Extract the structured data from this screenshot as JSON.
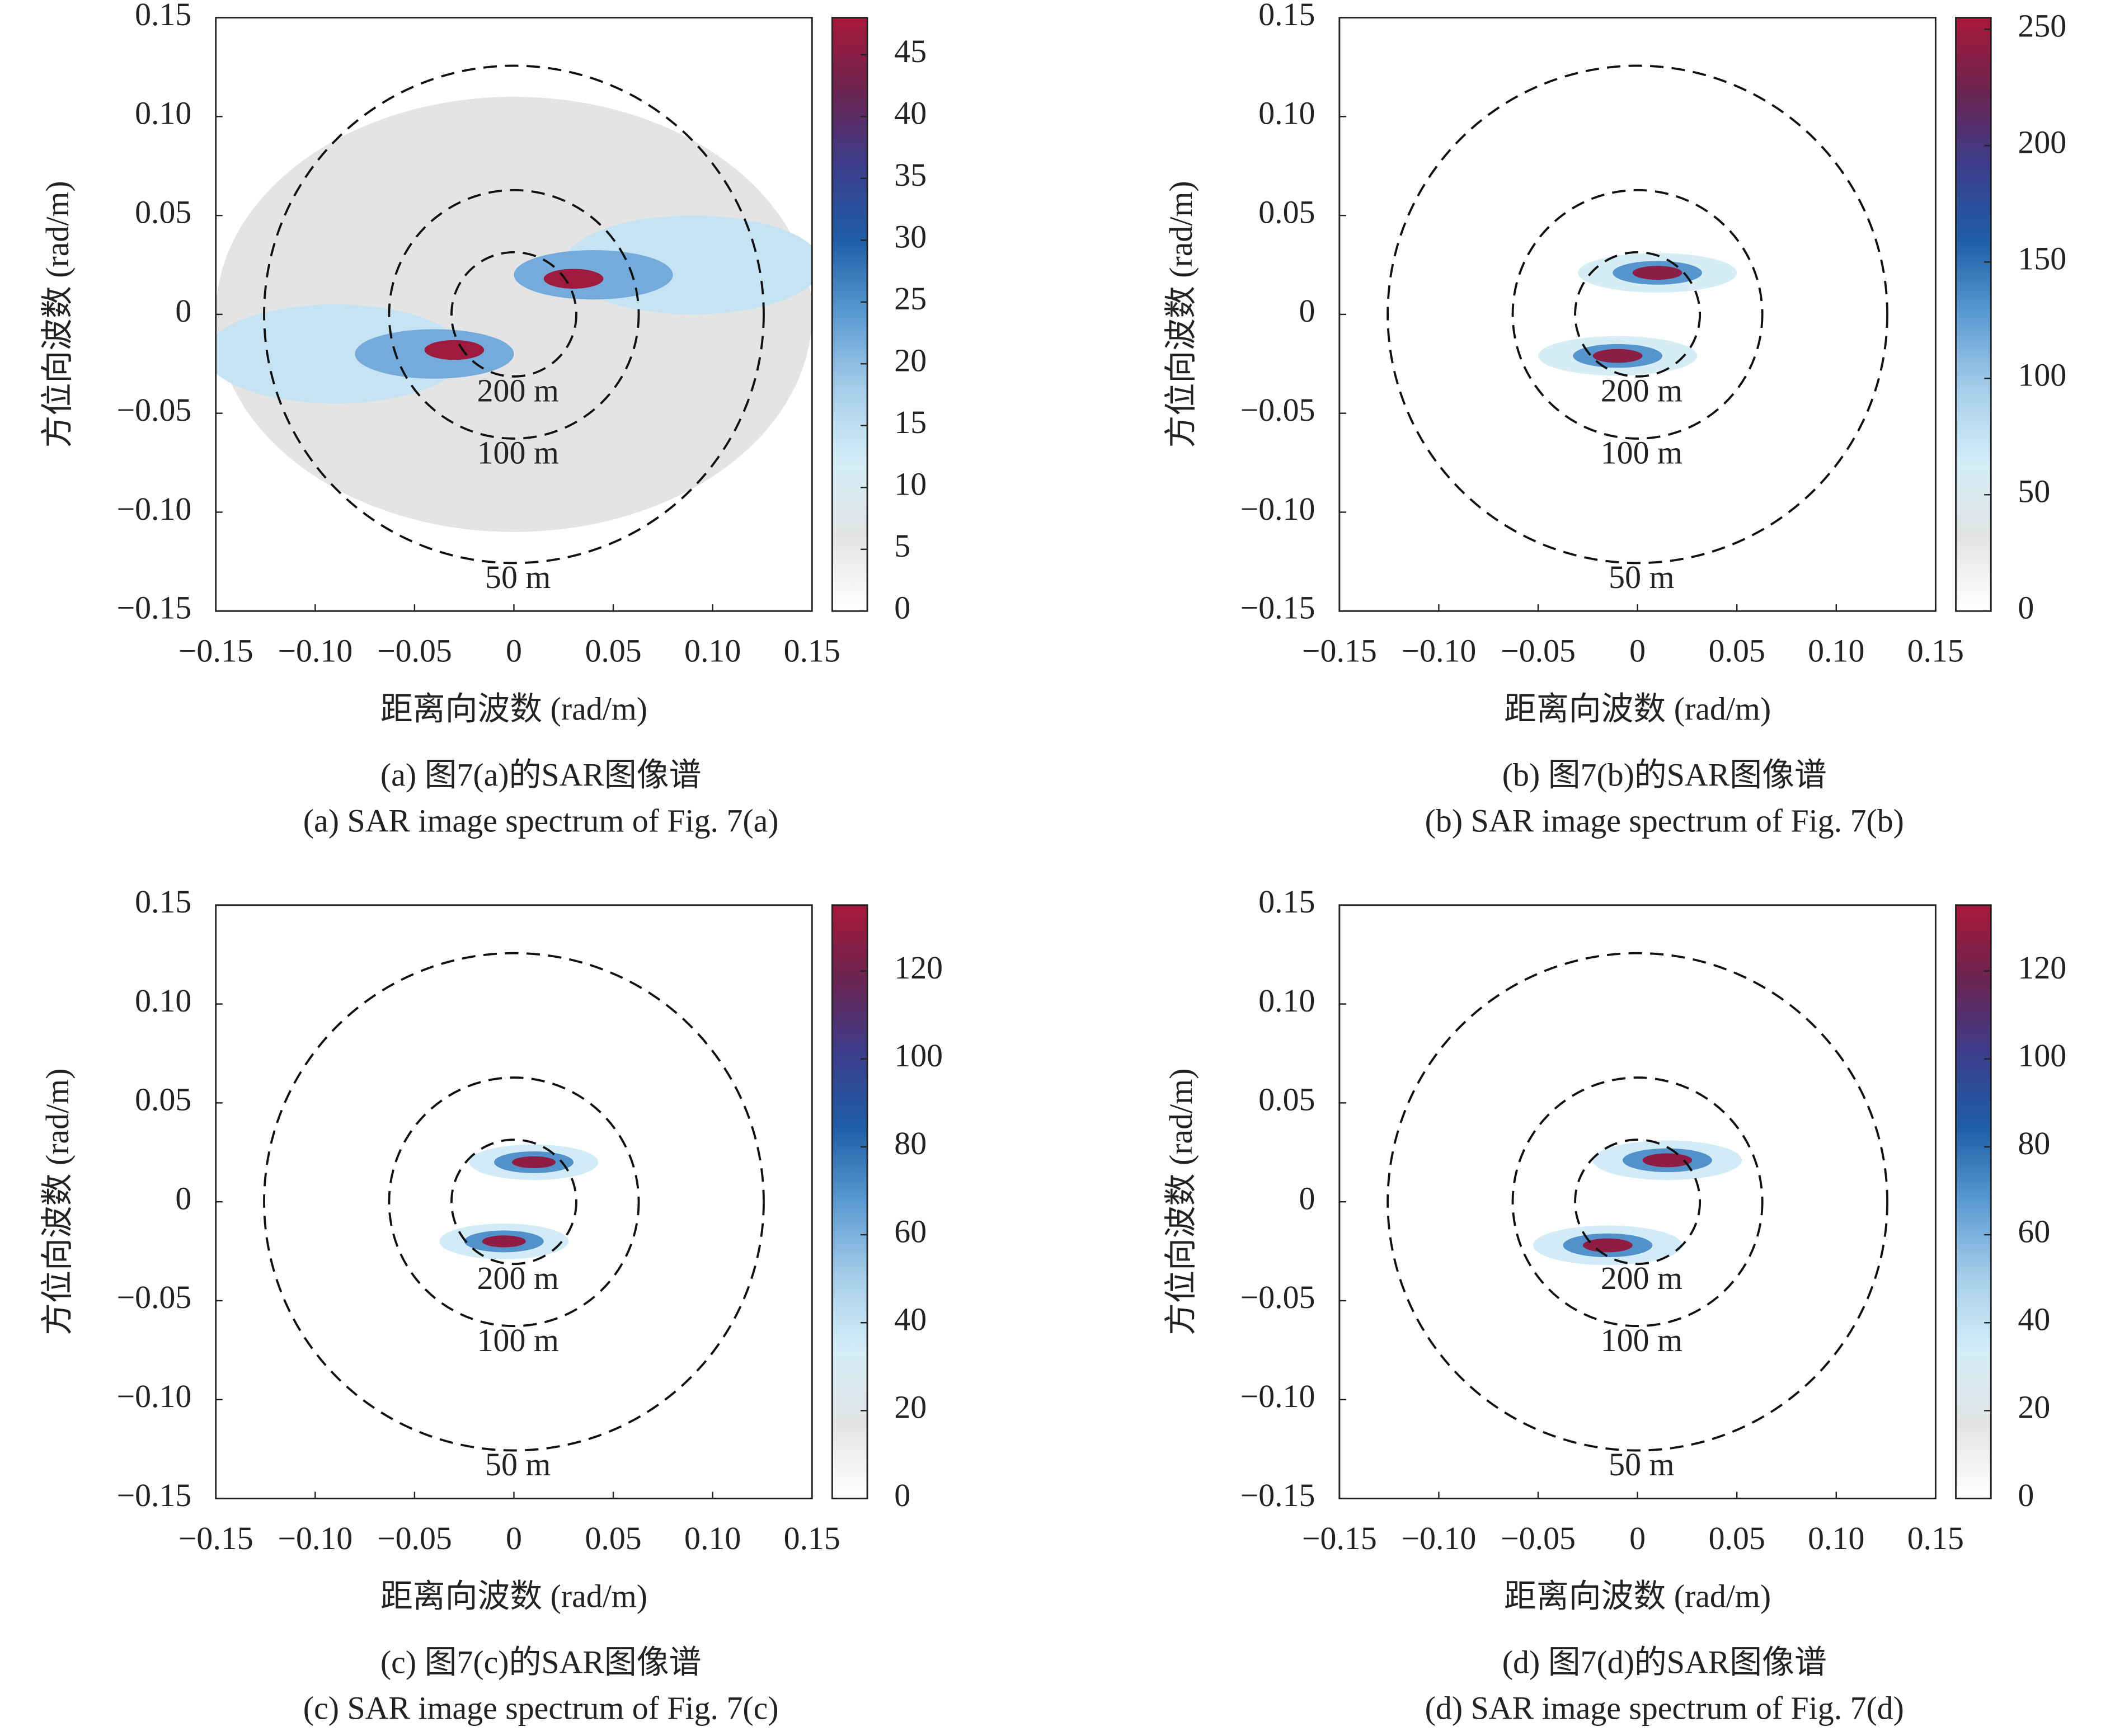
{
  "chart_data": [
    {
      "type": "heatmap",
      "caption": [
        "(a) 图7(a)的SAR图像谱",
        "(a) SAR image spectrum of Fig. 7(a)"
      ],
      "xlabel": "距离向波数 (rad/m)",
      "ylabel": "方位向波数 (rad/m)",
      "xlim": [
        -0.15,
        0.15
      ],
      "ylim": [
        -0.15,
        0.15
      ],
      "xticks": [
        {
          "value": -0.15,
          "label": "−0.15"
        },
        {
          "value": -0.1,
          "label": "−0.10"
        },
        {
          "value": -0.05,
          "label": "−0.05"
        },
        0,
        0.05,
        {
          "value": 0.1,
          "label": "0.10"
        },
        0.15
      ],
      "yticks": [
        {
          "value": -0.15,
          "label": "−0.15"
        },
        {
          "value": -0.1,
          "label": "−0.10"
        },
        {
          "value": -0.05,
          "label": "−0.05"
        },
        0,
        0.05,
        {
          "value": 0.1,
          "label": "0.10"
        },
        0.15
      ],
      "clim": [
        0,
        48
      ],
      "cticks": [
        0,
        5,
        10,
        15,
        20,
        25,
        30,
        35,
        40,
        45
      ],
      "colormap": [
        "#ffffff",
        "#e4e4e4",
        "#d4eef8",
        "#a6cde9",
        "#5c9ad2",
        "#1f5ea6",
        "#3b3d8c",
        "#6b2450",
        "#a8183a"
      ],
      "blobs": [
        {
          "x": 0,
          "y": 0,
          "width": 0.3,
          "height": 0.22,
          "value": 6
        },
        {
          "x": -0.09,
          "y": -0.02,
          "width": 0.13,
          "height": 0.05,
          "value": 14
        },
        {
          "x": 0.09,
          "y": 0.025,
          "width": 0.13,
          "height": 0.05,
          "value": 14
        },
        {
          "x": -0.04,
          "y": -0.02,
          "width": 0.08,
          "height": 0.025,
          "value": 22
        },
        {
          "x": 0.04,
          "y": 0.02,
          "width": 0.08,
          "height": 0.025,
          "value": 22
        },
        {
          "x": -0.03,
          "y": -0.018,
          "width": 0.03,
          "height": 0.01,
          "value": 47
        },
        {
          "x": 0.03,
          "y": 0.018,
          "width": 0.03,
          "height": 0.01,
          "value": 47
        }
      ],
      "circles": [
        {
          "radius": 0.0314,
          "label": "200 m"
        },
        {
          "radius": 0.0628,
          "label": "100 m"
        },
        {
          "radius": 0.1257,
          "label": "50 m"
        }
      ]
    },
    {
      "type": "heatmap",
      "caption": [
        "(b) 图7(b)的SAR图像谱",
        "(b) SAR image spectrum of Fig. 7(b)"
      ],
      "xlabel": "距离向波数 (rad/m)",
      "ylabel": "方位向波数 (rad/m)",
      "xlim": [
        -0.15,
        0.15
      ],
      "ylim": [
        -0.15,
        0.15
      ],
      "xticks": [
        {
          "value": -0.15,
          "label": "−0.15"
        },
        {
          "value": -0.1,
          "label": "−0.10"
        },
        {
          "value": -0.05,
          "label": "−0.05"
        },
        0,
        0.05,
        {
          "value": 0.1,
          "label": "0.10"
        },
        0.15
      ],
      "yticks": [
        {
          "value": -0.15,
          "label": "−0.15"
        },
        {
          "value": -0.1,
          "label": "−0.10"
        },
        {
          "value": -0.05,
          "label": "−0.05"
        },
        0,
        0.05,
        {
          "value": 0.1,
          "label": "0.10"
        },
        0.15
      ],
      "clim": [
        0,
        255
      ],
      "cticks": [
        0,
        50,
        100,
        150,
        200,
        250
      ],
      "colormap": [
        "#ffffff",
        "#e4e4e4",
        "#d4eef8",
        "#a6cde9",
        "#5c9ad2",
        "#1f5ea6",
        "#3b3d8c",
        "#6b2450",
        "#a8183a"
      ],
      "blobs": [
        {
          "x": 0.01,
          "y": 0.021,
          "width": 0.08,
          "height": 0.02,
          "value": 60
        },
        {
          "x": -0.01,
          "y": -0.021,
          "width": 0.08,
          "height": 0.02,
          "value": 60
        },
        {
          "x": 0.01,
          "y": 0.021,
          "width": 0.045,
          "height": 0.012,
          "value": 130
        },
        {
          "x": -0.01,
          "y": -0.021,
          "width": 0.045,
          "height": 0.012,
          "value": 130
        },
        {
          "x": 0.01,
          "y": 0.021,
          "width": 0.025,
          "height": 0.007,
          "value": 240
        },
        {
          "x": -0.01,
          "y": -0.021,
          "width": 0.025,
          "height": 0.007,
          "value": 240
        }
      ],
      "circles": [
        {
          "radius": 0.0314,
          "label": "200 m"
        },
        {
          "radius": 0.0628,
          "label": "100 m"
        },
        {
          "radius": 0.1257,
          "label": "50 m"
        }
      ]
    },
    {
      "type": "heatmap",
      "caption": [
        "(c) 图7(c)的SAR图像谱",
        "(c) SAR image spectrum of Fig. 7(c)"
      ],
      "xlabel": "距离向波数 (rad/m)",
      "ylabel": "方位向波数 (rad/m)",
      "xlim": [
        -0.15,
        0.15
      ],
      "ylim": [
        -0.15,
        0.15
      ],
      "xticks": [
        {
          "value": -0.15,
          "label": "−0.15"
        },
        {
          "value": -0.1,
          "label": "−0.10"
        },
        {
          "value": -0.05,
          "label": "−0.05"
        },
        0,
        0.05,
        {
          "value": 0.1,
          "label": "0.10"
        },
        0.15
      ],
      "yticks": [
        {
          "value": -0.15,
          "label": "−0.15"
        },
        {
          "value": -0.1,
          "label": "−0.10"
        },
        {
          "value": -0.05,
          "label": "−0.05"
        },
        0,
        0.05,
        {
          "value": 0.1,
          "label": "0.10"
        },
        0.15
      ],
      "clim": [
        0,
        135
      ],
      "cticks": [
        0,
        20,
        40,
        60,
        80,
        100,
        120
      ],
      "colormap": [
        "#ffffff",
        "#e4e4e4",
        "#d4eef8",
        "#a6cde9",
        "#5c9ad2",
        "#1f5ea6",
        "#3b3d8c",
        "#6b2450",
        "#a8183a"
      ],
      "blobs": [
        {
          "x": 0.01,
          "y": 0.02,
          "width": 0.065,
          "height": 0.018,
          "value": 35
        },
        {
          "x": -0.005,
          "y": -0.02,
          "width": 0.065,
          "height": 0.018,
          "value": 35
        },
        {
          "x": 0.01,
          "y": 0.02,
          "width": 0.04,
          "height": 0.011,
          "value": 70
        },
        {
          "x": -0.005,
          "y": -0.02,
          "width": 0.04,
          "height": 0.011,
          "value": 70
        },
        {
          "x": 0.01,
          "y": 0.02,
          "width": 0.022,
          "height": 0.006,
          "value": 128
        },
        {
          "x": -0.005,
          "y": -0.02,
          "width": 0.022,
          "height": 0.006,
          "value": 128
        }
      ],
      "circles": [
        {
          "radius": 0.0314,
          "label": "200 m"
        },
        {
          "radius": 0.0628,
          "label": "100 m"
        },
        {
          "radius": 0.1257,
          "label": "50 m"
        }
      ]
    },
    {
      "type": "heatmap",
      "caption": [
        "(d) 图7(d)的SAR图像谱",
        "(d) SAR image spectrum of Fig. 7(d)"
      ],
      "xlabel": "距离向波数 (rad/m)",
      "ylabel": "方位向波数 (rad/m)",
      "xlim": [
        -0.15,
        0.15
      ],
      "ylim": [
        -0.15,
        0.15
      ],
      "xticks": [
        {
          "value": -0.15,
          "label": "−0.15"
        },
        {
          "value": -0.1,
          "label": "−0.10"
        },
        {
          "value": -0.05,
          "label": "−0.05"
        },
        0,
        0.05,
        {
          "value": 0.1,
          "label": "0.10"
        },
        0.15
      ],
      "yticks": [
        {
          "value": -0.15,
          "label": "−0.15"
        },
        {
          "value": -0.1,
          "label": "−0.10"
        },
        {
          "value": -0.05,
          "label": "−0.05"
        },
        0,
        0.05,
        {
          "value": 0.1,
          "label": "0.10"
        },
        0.15
      ],
      "clim": [
        0,
        135
      ],
      "cticks": [
        0,
        20,
        40,
        60,
        80,
        100,
        120
      ],
      "colormap": [
        "#ffffff",
        "#e4e4e4",
        "#d4eef8",
        "#a6cde9",
        "#5c9ad2",
        "#1f5ea6",
        "#3b3d8c",
        "#6b2450",
        "#a8183a"
      ],
      "blobs": [
        {
          "x": 0.015,
          "y": 0.021,
          "width": 0.075,
          "height": 0.02,
          "value": 35
        },
        {
          "x": -0.015,
          "y": -0.022,
          "width": 0.075,
          "height": 0.02,
          "value": 35
        },
        {
          "x": 0.015,
          "y": 0.021,
          "width": 0.045,
          "height": 0.012,
          "value": 70
        },
        {
          "x": -0.015,
          "y": -0.022,
          "width": 0.045,
          "height": 0.012,
          "value": 70
        },
        {
          "x": 0.015,
          "y": 0.021,
          "width": 0.025,
          "height": 0.007,
          "value": 128
        },
        {
          "x": -0.015,
          "y": -0.022,
          "width": 0.025,
          "height": 0.007,
          "value": 128
        }
      ],
      "circles": [
        {
          "radius": 0.0314,
          "label": "200 m"
        },
        {
          "radius": 0.0628,
          "label": "100 m"
        },
        {
          "radius": 0.1257,
          "label": "50 m"
        }
      ]
    }
  ]
}
